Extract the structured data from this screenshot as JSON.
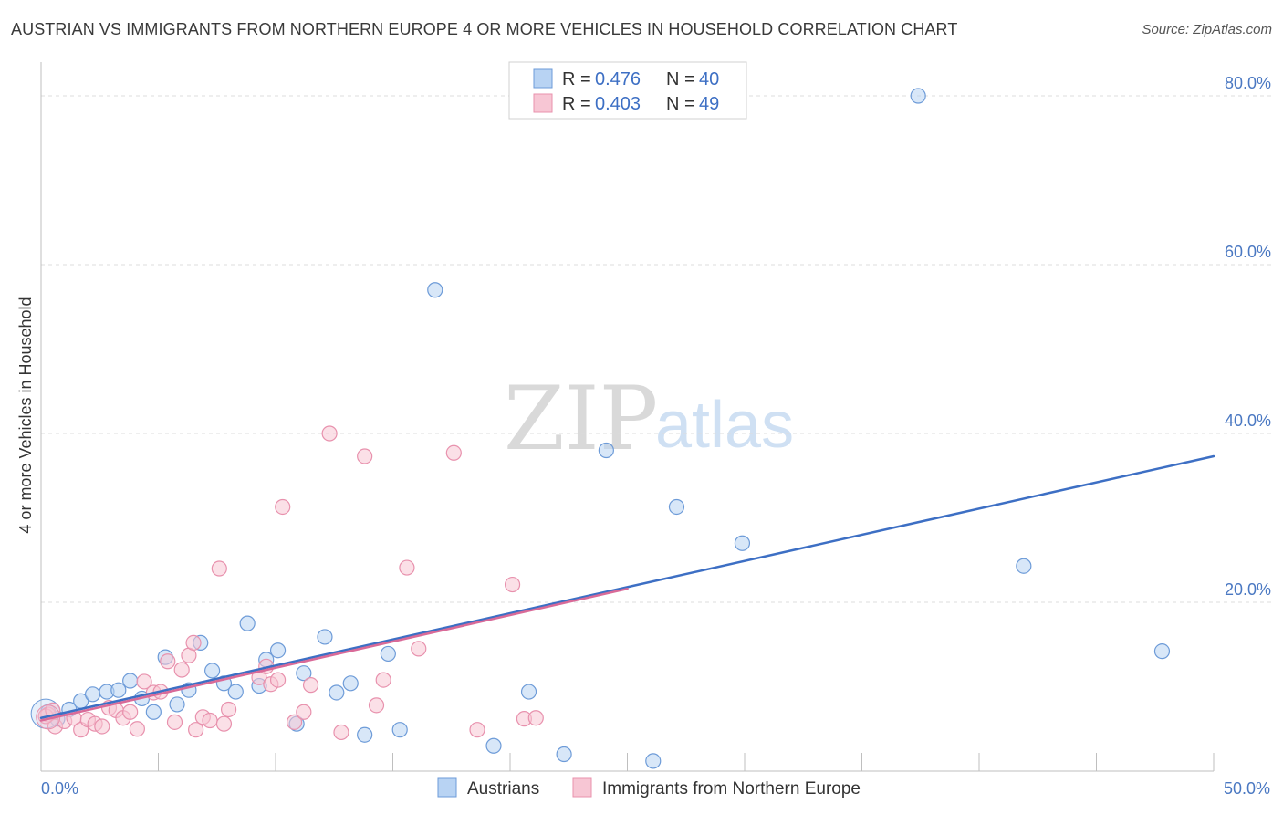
{
  "title": "AUSTRIAN VS IMMIGRANTS FROM NORTHERN EUROPE 4 OR MORE VEHICLES IN HOUSEHOLD CORRELATION CHART",
  "source": "Source: ZipAtlas.com",
  "watermark": {
    "zip": "ZIP",
    "atlas": "atlas"
  },
  "colors": {
    "austrians_fill": "#b8d3f3",
    "austrians_stroke": "#6d9bd8",
    "immigrants_fill": "#f7c6d4",
    "immigrants_stroke": "#e891ad",
    "trend_blue": "#3d6fc4",
    "trend_pink": "#d96a98",
    "grid": "#dcdcdc",
    "tick_label": "#4a78c2"
  },
  "legend": {
    "r_label": "R = ",
    "n_label": "N = ",
    "series": [
      {
        "r": "0.476",
        "n": "40"
      },
      {
        "r": "0.403",
        "n": "49"
      }
    ]
  },
  "chart_data": {
    "type": "scatter",
    "title": "AUSTRIAN VS IMMIGRANTS FROM NORTHERN EUROPE 4 OR MORE VEHICLES IN HOUSEHOLD CORRELATION CHART",
    "xlabel": "",
    "ylabel": "4 or more Vehicles in Household",
    "xlim": [
      0,
      50
    ],
    "ylim": [
      0,
      84
    ],
    "x_tick_labels": [
      {
        "value": 0,
        "label": "0.0%"
      },
      {
        "value": 50,
        "label": "50.0%"
      }
    ],
    "y_ticks": [
      {
        "value": 20,
        "label": "20.0%"
      },
      {
        "value": 40,
        "label": "40.0%"
      },
      {
        "value": 60,
        "label": "60.0%"
      },
      {
        "value": 80,
        "label": "80.0%"
      }
    ],
    "series": [
      {
        "name": "Austrians",
        "points": [
          [
            0.3,
            7.0
          ],
          [
            0.7,
            6.2
          ],
          [
            1.2,
            7.3
          ],
          [
            1.7,
            8.3
          ],
          [
            2.2,
            9.1
          ],
          [
            2.8,
            9.4
          ],
          [
            3.3,
            9.6
          ],
          [
            3.8,
            10.7
          ],
          [
            4.3,
            8.6
          ],
          [
            4.8,
            7.0
          ],
          [
            5.3,
            13.5
          ],
          [
            5.8,
            7.9
          ],
          [
            6.3,
            9.6
          ],
          [
            6.8,
            15.2
          ],
          [
            7.3,
            11.9
          ],
          [
            7.8,
            10.4
          ],
          [
            8.3,
            9.4
          ],
          [
            8.8,
            17.5
          ],
          [
            9.3,
            10.1
          ],
          [
            9.6,
            13.2
          ],
          [
            10.1,
            14.3
          ],
          [
            10.9,
            5.6
          ],
          [
            11.2,
            11.6
          ],
          [
            12.1,
            15.9
          ],
          [
            12.6,
            9.3
          ],
          [
            13.2,
            10.4
          ],
          [
            13.8,
            4.3
          ],
          [
            14.8,
            13.9
          ],
          [
            15.3,
            4.9
          ],
          [
            16.8,
            57.0
          ],
          [
            19.3,
            3.0
          ],
          [
            20.8,
            9.4
          ],
          [
            22.3,
            2.0
          ],
          [
            24.1,
            38.0
          ],
          [
            26.1,
            1.2
          ],
          [
            27.1,
            31.3
          ],
          [
            29.9,
            27.0
          ],
          [
            37.4,
            80.0
          ],
          [
            41.9,
            24.3
          ],
          [
            47.8,
            14.2
          ]
        ]
      },
      {
        "name": "Immigrants from Northern Europe",
        "points": [
          [
            0.3,
            6.7
          ],
          [
            0.6,
            5.3
          ],
          [
            1.0,
            5.9
          ],
          [
            1.4,
            6.3
          ],
          [
            1.7,
            4.9
          ],
          [
            2.0,
            6.1
          ],
          [
            2.3,
            5.6
          ],
          [
            2.6,
            5.3
          ],
          [
            2.9,
            7.5
          ],
          [
            3.2,
            7.2
          ],
          [
            3.5,
            6.3
          ],
          [
            3.8,
            7.0
          ],
          [
            4.1,
            5.0
          ],
          [
            4.4,
            10.6
          ],
          [
            4.8,
            9.3
          ],
          [
            5.1,
            9.4
          ],
          [
            5.4,
            13.0
          ],
          [
            5.7,
            5.8
          ],
          [
            6.0,
            12.0
          ],
          [
            6.3,
            13.7
          ],
          [
            6.5,
            15.2
          ],
          [
            6.6,
            4.9
          ],
          [
            6.9,
            6.4
          ],
          [
            7.2,
            6.0
          ],
          [
            7.6,
            24.0
          ],
          [
            7.8,
            5.6
          ],
          [
            8.0,
            7.3
          ],
          [
            9.3,
            11.1
          ],
          [
            9.6,
            12.4
          ],
          [
            9.8,
            10.3
          ],
          [
            10.1,
            10.8
          ],
          [
            10.3,
            31.3
          ],
          [
            10.8,
            5.8
          ],
          [
            11.2,
            7.0
          ],
          [
            11.5,
            10.2
          ],
          [
            12.3,
            40.0
          ],
          [
            12.8,
            4.6
          ],
          [
            13.8,
            37.3
          ],
          [
            14.3,
            7.8
          ],
          [
            14.6,
            10.8
          ],
          [
            15.6,
            24.1
          ],
          [
            16.1,
            14.5
          ],
          [
            17.6,
            37.7
          ],
          [
            18.6,
            4.9
          ],
          [
            20.1,
            22.1
          ],
          [
            20.6,
            6.2
          ],
          [
            21.1,
            6.3
          ],
          [
            0.2,
            6.5
          ],
          [
            0.5,
            7.2
          ]
        ]
      }
    ],
    "trend_lines": [
      {
        "name": "Austrians",
        "x": [
          0,
          50
        ],
        "y": [
          6.3,
          37.3
        ]
      },
      {
        "name": "Immigrants from Northern Europe",
        "x": [
          0,
          25
        ],
        "y": [
          6.0,
          21.6
        ]
      }
    ],
    "legend_position": "bottom-center"
  }
}
